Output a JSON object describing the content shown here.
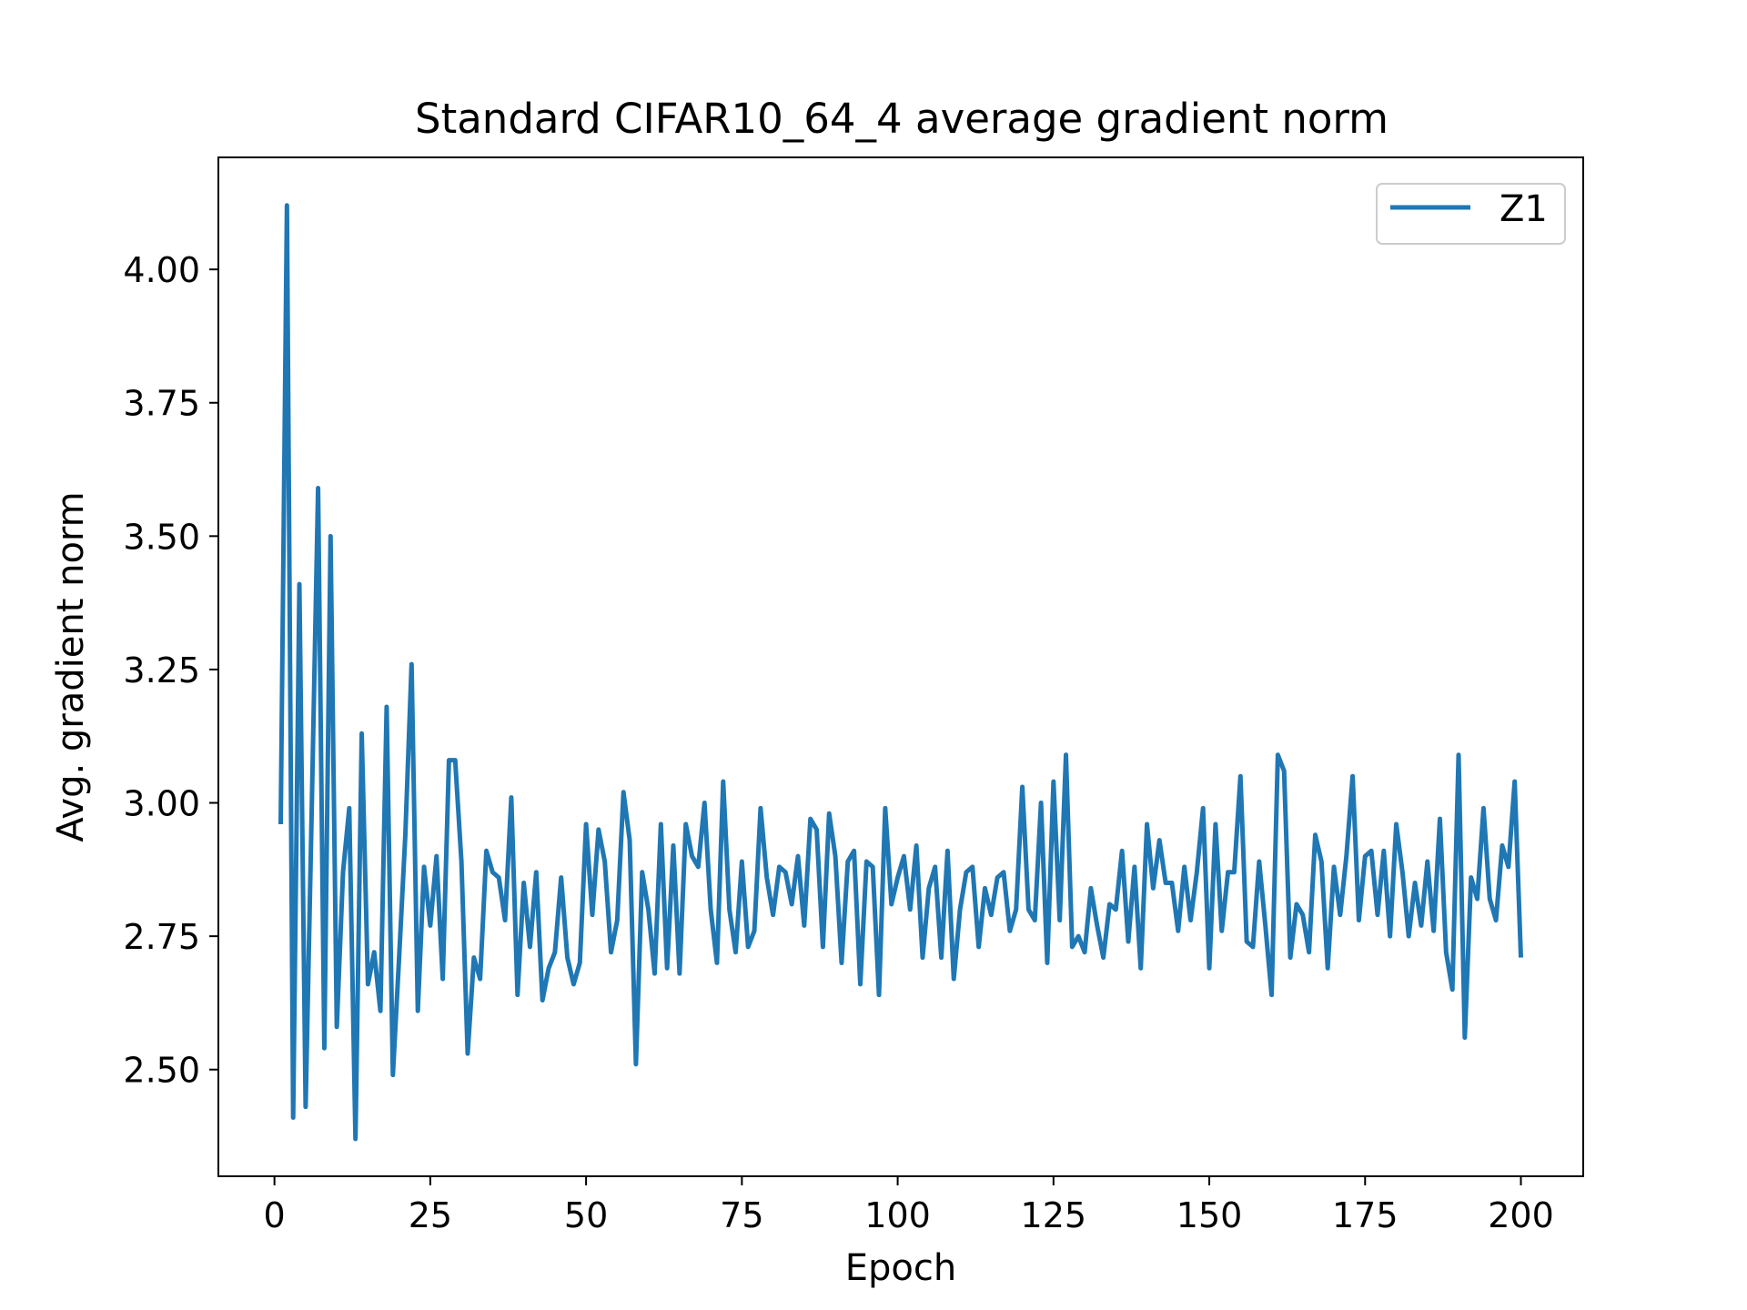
{
  "chart_data": {
    "type": "line",
    "title": "Standard CIFAR10_64_4 average gradient norm",
    "xlabel": "Epoch",
    "ylabel": "Avg. gradient norm",
    "xlim": [
      -9,
      210
    ],
    "ylim": [
      2.3,
      4.21
    ],
    "xticks": [
      0,
      25,
      50,
      75,
      100,
      125,
      150,
      175,
      200
    ],
    "xtick_labels": [
      "0",
      "25",
      "50",
      "75",
      "100",
      "125",
      "150",
      "175",
      "200"
    ],
    "yticks": [
      2.5,
      2.75,
      3.0,
      3.25,
      3.5,
      3.75,
      4.0
    ],
    "ytick_labels": [
      "2.50",
      "2.75",
      "3.00",
      "3.25",
      "3.50",
      "3.75",
      "4.00"
    ],
    "grid": false,
    "legend_position": "top-right",
    "series": [
      {
        "name": "Z1",
        "color": "#1f77b4",
        "x": [
          1,
          2,
          3,
          4,
          5,
          6,
          7,
          8,
          9,
          10,
          11,
          12,
          13,
          14,
          15,
          16,
          17,
          18,
          19,
          20,
          21,
          22,
          23,
          24,
          25,
          26,
          27,
          28,
          29,
          30,
          31,
          32,
          33,
          34,
          35,
          36,
          37,
          38,
          39,
          40,
          41,
          42,
          43,
          44,
          45,
          46,
          47,
          48,
          49,
          50,
          51,
          52,
          53,
          54,
          55,
          56,
          57,
          58,
          59,
          60,
          61,
          62,
          63,
          64,
          65,
          66,
          67,
          68,
          69,
          70,
          71,
          72,
          73,
          74,
          75,
          76,
          77,
          78,
          79,
          80,
          81,
          82,
          83,
          84,
          85,
          86,
          87,
          88,
          89,
          90,
          91,
          92,
          93,
          94,
          95,
          96,
          97,
          98,
          99,
          100,
          101,
          102,
          103,
          104,
          105,
          106,
          107,
          108,
          109,
          110,
          111,
          112,
          113,
          114,
          115,
          116,
          117,
          118,
          119,
          120,
          121,
          122,
          123,
          124,
          125,
          126,
          127,
          128,
          129,
          130,
          131,
          132,
          133,
          134,
          135,
          136,
          137,
          138,
          139,
          140,
          141,
          142,
          143,
          144,
          145,
          146,
          147,
          148,
          149,
          150,
          151,
          152,
          153,
          154,
          155,
          156,
          157,
          158,
          159,
          160,
          161,
          162,
          163,
          164,
          165,
          166,
          167,
          168,
          169,
          170,
          171,
          172,
          173,
          174,
          175,
          176,
          177,
          178,
          179,
          180,
          181,
          182,
          183,
          184,
          185,
          186,
          187,
          188,
          189,
          190,
          191,
          192,
          193,
          194,
          195,
          196,
          197,
          198,
          199,
          200
        ],
        "y": [
          2.96,
          4.12,
          2.41,
          3.41,
          2.43,
          3.0,
          3.59,
          2.54,
          3.5,
          2.58,
          2.87,
          2.99,
          2.37,
          3.13,
          2.66,
          2.72,
          2.61,
          3.18,
          2.49,
          2.71,
          2.94,
          3.26,
          2.61,
          2.88,
          2.77,
          2.9,
          2.67,
          3.08,
          3.08,
          2.89,
          2.53,
          2.71,
          2.67,
          2.91,
          2.87,
          2.86,
          2.78,
          3.01,
          2.64,
          2.85,
          2.73,
          2.87,
          2.63,
          2.69,
          2.72,
          2.86,
          2.71,
          2.66,
          2.7,
          2.96,
          2.79,
          2.95,
          2.89,
          2.72,
          2.78,
          3.02,
          2.93,
          2.51,
          2.87,
          2.8,
          2.68,
          2.96,
          2.69,
          2.92,
          2.68,
          2.96,
          2.9,
          2.88,
          3.0,
          2.8,
          2.7,
          3.04,
          2.8,
          2.72,
          2.89,
          2.73,
          2.76,
          2.99,
          2.86,
          2.79,
          2.88,
          2.87,
          2.81,
          2.9,
          2.77,
          2.97,
          2.95,
          2.73,
          2.98,
          2.9,
          2.7,
          2.89,
          2.91,
          2.66,
          2.89,
          2.88,
          2.64,
          2.99,
          2.81,
          2.86,
          2.9,
          2.8,
          2.92,
          2.71,
          2.84,
          2.88,
          2.71,
          2.91,
          2.67,
          2.8,
          2.87,
          2.88,
          2.73,
          2.84,
          2.79,
          2.86,
          2.87,
          2.76,
          2.8,
          3.03,
          2.8,
          2.78,
          3.0,
          2.7,
          3.04,
          2.78,
          3.09,
          2.73,
          2.75,
          2.72,
          2.84,
          2.77,
          2.71,
          2.81,
          2.8,
          2.91,
          2.74,
          2.88,
          2.69,
          2.96,
          2.84,
          2.93,
          2.85,
          2.85,
          2.76,
          2.88,
          2.78,
          2.87,
          2.99,
          2.69,
          2.96,
          2.76,
          2.87,
          2.87,
          3.05,
          2.74,
          2.73,
          2.89,
          2.77,
          2.64,
          3.09,
          3.06,
          2.71,
          2.81,
          2.79,
          2.72,
          2.94,
          2.89,
          2.69,
          2.88,
          2.79,
          2.9,
          3.05,
          2.78,
          2.9,
          2.91,
          2.79,
          2.91,
          2.75,
          2.96,
          2.87,
          2.75,
          2.85,
          2.77,
          2.89,
          2.76,
          2.97,
          2.72,
          2.65,
          3.09,
          2.56,
          2.86,
          2.82,
          2.99,
          2.82,
          2.78,
          2.92,
          2.88,
          3.04,
          2.71
        ]
      }
    ]
  }
}
